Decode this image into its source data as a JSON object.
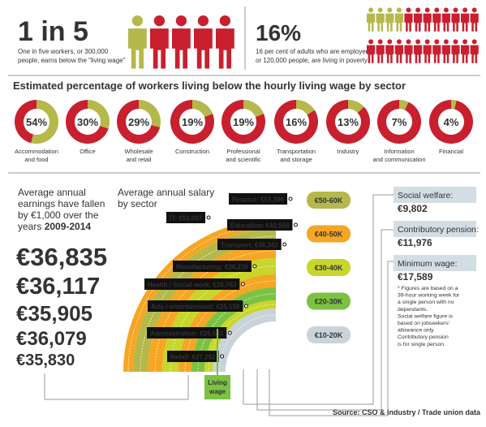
{
  "top_left": {
    "headline": "1 in 5",
    "text": [
      "One in five workers, or 300,000",
      "people, earns below the \"living wage\""
    ]
  },
  "top_right": {
    "headline": "16%",
    "text": [
      "16 per cent of adults who are employed,",
      "or 120,000 people, are living in poverty"
    ]
  },
  "donuts": {
    "title": "Estimated percentage of workers living below the hourly living wage by sector",
    "items": [
      {
        "value": 54,
        "label": "54%",
        "sector": [
          "Accommodation",
          "and food"
        ]
      },
      {
        "value": 30,
        "label": "30%",
        "sector": [
          "Office"
        ]
      },
      {
        "value": 29,
        "label": "29%",
        "sector": [
          "Wholesale",
          "and retail"
        ]
      },
      {
        "value": 19,
        "label": "19%",
        "sector": [
          "Construction"
        ]
      },
      {
        "value": 19,
        "label": "19%",
        "sector": [
          "Professional",
          "and scientific"
        ]
      },
      {
        "value": 16,
        "label": "16%",
        "sector": [
          "Transportation",
          "and storage"
        ]
      },
      {
        "value": 13,
        "label": "13%",
        "sector": [
          "Industry"
        ]
      },
      {
        "value": 7,
        "label": "7%",
        "sector": [
          "Information",
          "and communication"
        ]
      },
      {
        "value": 4,
        "label": "4%",
        "sector": [
          "Financial"
        ]
      }
    ]
  },
  "earnings": {
    "text": [
      "Average annual",
      "earnings have fallen",
      "by €1,000 over the"
    ],
    "text_last": "years ",
    "years": "2009-2014",
    "values": [
      "€36,835",
      "€36,117",
      "€35,905",
      "€36,079",
      "€35,830"
    ]
  },
  "salary": {
    "title": [
      "Average annual salary",
      "by sector"
    ],
    "sectors": [
      "Finance: €51,306",
      "IT: €53,067",
      "Education: €42,554",
      "Transport: €38,342",
      "Manufacturing: €36,230",
      "Health / Social work: €35,763",
      "Arts / entertainment: €25,158",
      "Administration: €25,563",
      "Retail: €27,252"
    ],
    "bands": [
      "€50-60K",
      "€40-50K",
      "€30-40K",
      "€20-30K",
      "€10-20K"
    ],
    "living_wage": [
      "Living",
      "wage"
    ]
  },
  "reference": [
    {
      "label": "Social welfare:",
      "value": "€9,802"
    },
    {
      "label": "Contributory pension:",
      "value": "€11,976"
    },
    {
      "label": "Minimum wage:",
      "value": "€17,589"
    }
  ],
  "note": [
    "* Figures are based on a",
    "39-hour working week for",
    "a single person with no",
    "dependants.",
    "Social welfare figure is",
    "based on jobseekers'",
    "allowance only.",
    "Contributory pension",
    "is for single person."
  ],
  "source": "Source: CSO & Industry / Trade union data"
}
